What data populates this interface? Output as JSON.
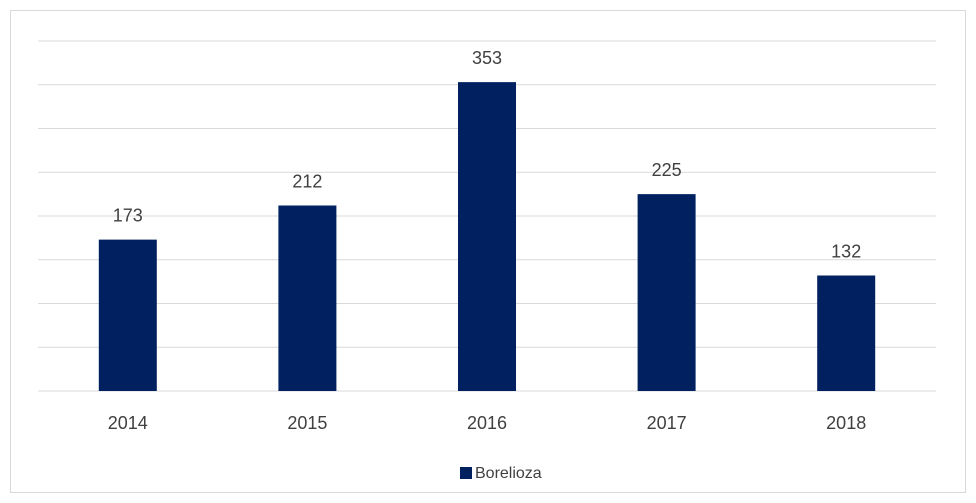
{
  "chart_data": {
    "type": "bar",
    "categories": [
      "2014",
      "2015",
      "2016",
      "2017",
      "2018"
    ],
    "series": [
      {
        "name": "Borelioza",
        "color": "#002060",
        "values": [
          173,
          212,
          353,
          225,
          132
        ]
      }
    ],
    "ylim": [
      0,
      400
    ],
    "yticks": [
      0,
      50,
      100,
      150,
      200,
      250,
      300,
      350,
      400
    ],
    "grid": true,
    "legend": "bottom"
  }
}
